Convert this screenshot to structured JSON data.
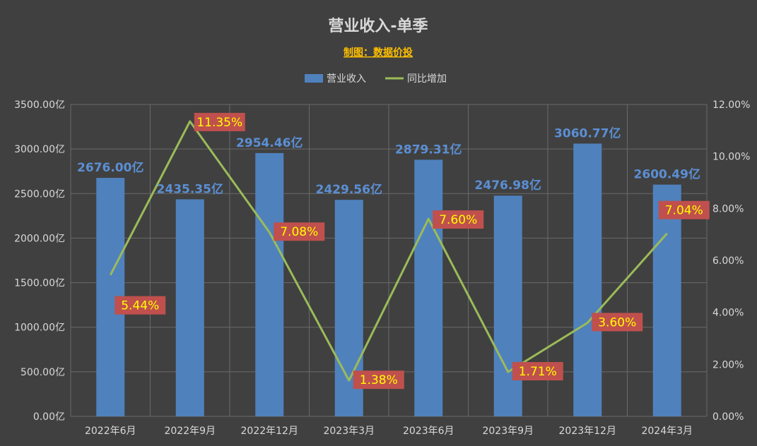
{
  "chart_data": {
    "type": "bar",
    "title": "营业收入-单季",
    "subtitle": "制图：数据价投",
    "categories": [
      "2022年6月",
      "2022年9月",
      "2022年12月",
      "2023年3月",
      "2023年6月",
      "2023年9月",
      "2023年12月",
      "2024年3月"
    ],
    "series": [
      {
        "name": "营业收入",
        "type": "bar",
        "axis": "left",
        "color": "#4f81bd",
        "values": [
          2676.0,
          2435.35,
          2954.46,
          2429.56,
          2879.31,
          2476.98,
          3060.77,
          2600.49
        ],
        "labels": [
          "2676.00亿",
          "2435.35亿",
          "2954.46亿",
          "2429.56亿",
          "2879.31亿",
          "2476.98亿",
          "3060.77亿",
          "2600.49亿"
        ]
      },
      {
        "name": "同比增加",
        "type": "line",
        "axis": "right",
        "color": "#9bbb59",
        "values": [
          5.44,
          11.35,
          7.08,
          1.38,
          7.6,
          1.71,
          3.6,
          7.04
        ],
        "labels": [
          "5.44%",
          "11.35%",
          "7.08%",
          "1.38%",
          "7.60%",
          "1.71%",
          "3.60%",
          "7.04%"
        ]
      }
    ],
    "y_left": {
      "min": 0,
      "max": 3500,
      "step": 500,
      "ticks": [
        "0.00亿",
        "500.00亿",
        "1000.00亿",
        "1500.00亿",
        "2000.00亿",
        "2500.00亿",
        "3000.00亿",
        "3500.00亿"
      ]
    },
    "y_right": {
      "min": 0,
      "max": 12,
      "step": 2,
      "ticks": [
        "0.00%",
        "2.00%",
        "4.00%",
        "6.00%",
        "8.00%",
        "10.00%",
        "12.00%"
      ]
    },
    "grid": true,
    "legend_position": "top",
    "colors": {
      "background": "#404040",
      "bar": "#4f81bd",
      "line": "#9bbb59",
      "bar_label": "#5b8fd4",
      "pct_label_bg": "#c0504d",
      "pct_label_text": "#ffff00",
      "grid": "#6a6a6a"
    }
  }
}
